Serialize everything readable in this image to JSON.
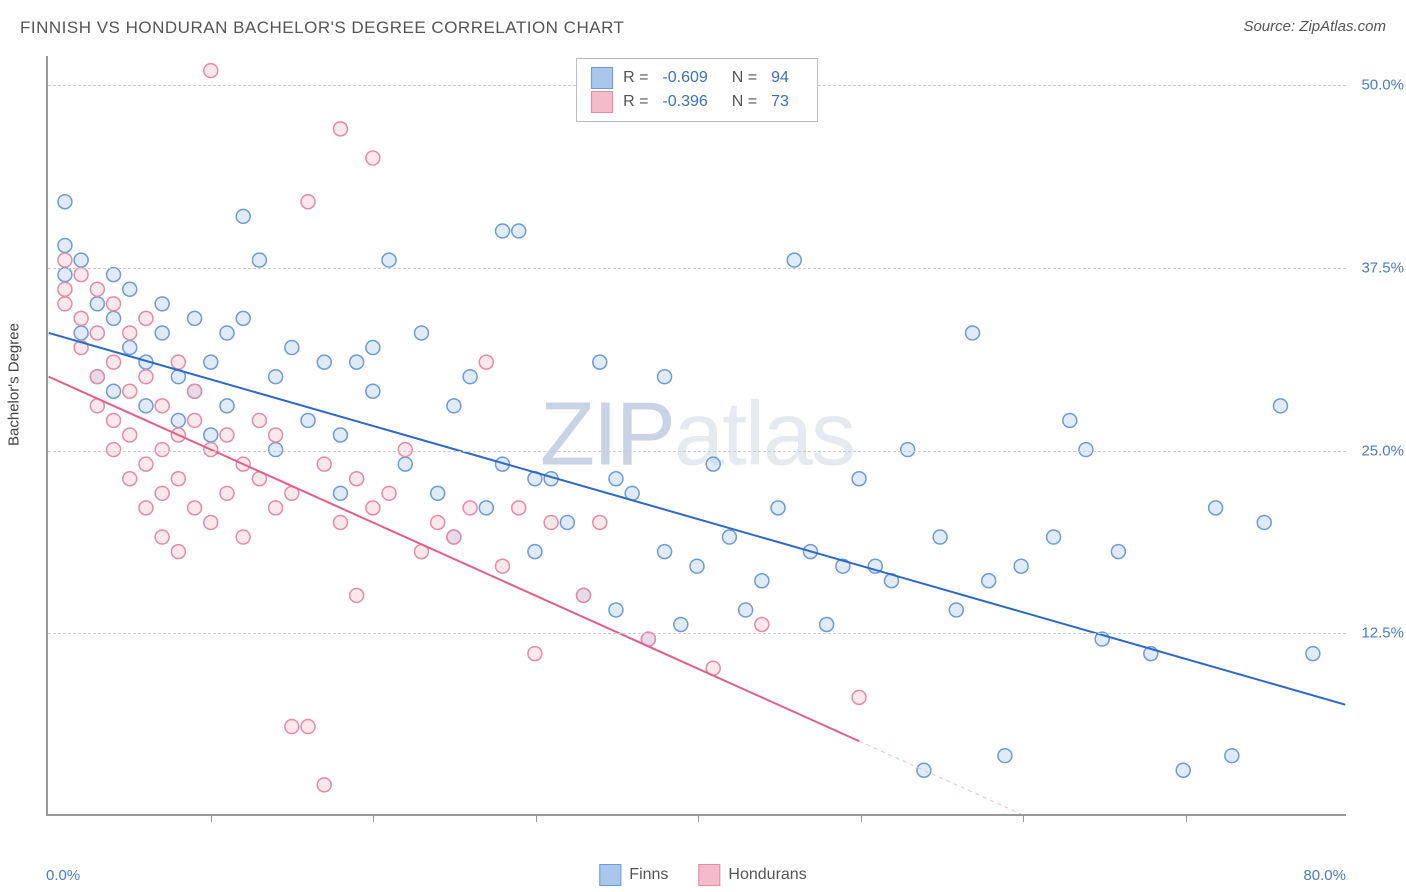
{
  "title": "FINNISH VS HONDURAN BACHELOR'S DEGREE CORRELATION CHART",
  "source": "Source: ZipAtlas.com",
  "ylabel": "Bachelor's Degree",
  "watermark_bold": "ZIP",
  "watermark_light": "atlas",
  "chart": {
    "type": "scatter",
    "xlim": [
      0,
      80
    ],
    "ylim": [
      0,
      52
    ],
    "xticks": [
      10,
      20,
      30,
      40,
      50,
      60,
      70
    ],
    "yticks": [
      12.5,
      25.0,
      37.5,
      50.0
    ],
    "ytick_labels": [
      "12.5%",
      "25.0%",
      "37.5%",
      "50.0%"
    ],
    "xmin_label": "0.0%",
    "xmax_label": "80.0%",
    "background_color": "#ffffff",
    "grid_color": "#cccccc",
    "marker_radius": 7,
    "series": [
      {
        "name": "Finns",
        "color_fill": "#a9c7ec",
        "color_stroke": "#6c9bd8",
        "R": "-0.609",
        "N": "94",
        "trend": {
          "x1": 0,
          "y1": 33,
          "x2": 80,
          "y2": 7.5,
          "color": "#2f68c4",
          "width": 2
        },
        "points": [
          [
            1,
            42
          ],
          [
            1,
            39
          ],
          [
            1,
            37
          ],
          [
            2,
            38
          ],
          [
            2,
            33
          ],
          [
            3,
            35
          ],
          [
            3,
            30
          ],
          [
            4,
            34
          ],
          [
            4,
            37
          ],
          [
            4,
            29
          ],
          [
            5,
            32
          ],
          [
            5,
            36
          ],
          [
            6,
            31
          ],
          [
            6,
            28
          ],
          [
            7,
            33
          ],
          [
            7,
            35
          ],
          [
            8,
            30
          ],
          [
            8,
            27
          ],
          [
            9,
            29
          ],
          [
            9,
            34
          ],
          [
            10,
            31
          ],
          [
            10,
            26
          ],
          [
            11,
            33
          ],
          [
            11,
            28
          ],
          [
            12,
            34
          ],
          [
            12,
            41
          ],
          [
            13,
            38
          ],
          [
            14,
            30
          ],
          [
            14,
            25
          ],
          [
            15,
            32
          ],
          [
            16,
            27
          ],
          [
            17,
            31
          ],
          [
            18,
            26
          ],
          [
            18,
            22
          ],
          [
            19,
            31
          ],
          [
            20,
            32
          ],
          [
            20,
            29
          ],
          [
            21,
            38
          ],
          [
            22,
            24
          ],
          [
            23,
            33
          ],
          [
            24,
            22
          ],
          [
            25,
            28
          ],
          [
            25,
            19
          ],
          [
            26,
            30
          ],
          [
            27,
            21
          ],
          [
            28,
            40
          ],
          [
            28,
            24
          ],
          [
            29,
            40
          ],
          [
            30,
            23
          ],
          [
            30,
            18
          ],
          [
            31,
            23
          ],
          [
            32,
            20
          ],
          [
            33,
            15
          ],
          [
            34,
            31
          ],
          [
            35,
            14
          ],
          [
            35,
            23
          ],
          [
            36,
            22
          ],
          [
            37,
            12
          ],
          [
            38,
            30
          ],
          [
            38,
            18
          ],
          [
            39,
            13
          ],
          [
            40,
            17
          ],
          [
            41,
            24
          ],
          [
            42,
            19
          ],
          [
            43,
            14
          ],
          [
            44,
            16
          ],
          [
            45,
            21
          ],
          [
            46,
            38
          ],
          [
            47,
            18
          ],
          [
            48,
            13
          ],
          [
            49,
            17
          ],
          [
            50,
            23
          ],
          [
            51,
            17
          ],
          [
            52,
            16
          ],
          [
            53,
            25
          ],
          [
            54,
            3
          ],
          [
            55,
            19
          ],
          [
            56,
            14
          ],
          [
            57,
            33
          ],
          [
            58,
            16
          ],
          [
            59,
            4
          ],
          [
            60,
            17
          ],
          [
            62,
            19
          ],
          [
            63,
            27
          ],
          [
            64,
            25
          ],
          [
            65,
            12
          ],
          [
            66,
            18
          ],
          [
            68,
            11
          ],
          [
            70,
            3
          ],
          [
            72,
            21
          ],
          [
            73,
            4
          ],
          [
            76,
            28
          ],
          [
            78,
            11
          ],
          [
            75,
            20
          ]
        ]
      },
      {
        "name": "Hondurans",
        "color_fill": "#f4bccb",
        "color_stroke": "#e88aa5",
        "R": "-0.396",
        "N": "73",
        "trend": {
          "x1": 0,
          "y1": 30,
          "x2": 50,
          "y2": 5,
          "color": "#e26088",
          "width": 2
        },
        "trend_dash": {
          "x1": 50,
          "y1": 5,
          "x2": 65,
          "y2": -2.5,
          "color": "#f4bccb",
          "width": 1
        },
        "points": [
          [
            1,
            38
          ],
          [
            1,
            36
          ],
          [
            1,
            35
          ],
          [
            2,
            37
          ],
          [
            2,
            34
          ],
          [
            2,
            32
          ],
          [
            3,
            36
          ],
          [
            3,
            33
          ],
          [
            3,
            30
          ],
          [
            3,
            28
          ],
          [
            4,
            35
          ],
          [
            4,
            31
          ],
          [
            4,
            27
          ],
          [
            4,
            25
          ],
          [
            5,
            33
          ],
          [
            5,
            29
          ],
          [
            5,
            26
          ],
          [
            5,
            23
          ],
          [
            6,
            34
          ],
          [
            6,
            30
          ],
          [
            6,
            24
          ],
          [
            6,
            21
          ],
          [
            7,
            28
          ],
          [
            7,
            25
          ],
          [
            7,
            22
          ],
          [
            7,
            19
          ],
          [
            8,
            31
          ],
          [
            8,
            26
          ],
          [
            8,
            23
          ],
          [
            8,
            18
          ],
          [
            9,
            27
          ],
          [
            9,
            21
          ],
          [
            9,
            29
          ],
          [
            10,
            25
          ],
          [
            10,
            20
          ],
          [
            10,
            51
          ],
          [
            11,
            26
          ],
          [
            11,
            22
          ],
          [
            12,
            24
          ],
          [
            12,
            19
          ],
          [
            13,
            27
          ],
          [
            13,
            23
          ],
          [
            14,
            21
          ],
          [
            14,
            26
          ],
          [
            15,
            6
          ],
          [
            15,
            22
          ],
          [
            16,
            6
          ],
          [
            16,
            42
          ],
          [
            17,
            24
          ],
          [
            17,
            2
          ],
          [
            18,
            20
          ],
          [
            18,
            47
          ],
          [
            19,
            23
          ],
          [
            19,
            15
          ],
          [
            20,
            45
          ],
          [
            20,
            21
          ],
          [
            21,
            22
          ],
          [
            22,
            25
          ],
          [
            23,
            18
          ],
          [
            24,
            20
          ],
          [
            25,
            19
          ],
          [
            26,
            21
          ],
          [
            27,
            31
          ],
          [
            28,
            17
          ],
          [
            29,
            21
          ],
          [
            30,
            11
          ],
          [
            31,
            20
          ],
          [
            33,
            15
          ],
          [
            34,
            20
          ],
          [
            37,
            12
          ],
          [
            41,
            10
          ],
          [
            44,
            13
          ],
          [
            50,
            8
          ]
        ]
      }
    ]
  },
  "legend_bottom": {
    "items": [
      {
        "label": "Finns",
        "fill": "#a9c7ec",
        "stroke": "#6c9bd8"
      },
      {
        "label": "Hondurans",
        "fill": "#f4bccb",
        "stroke": "#e88aa5"
      }
    ]
  }
}
